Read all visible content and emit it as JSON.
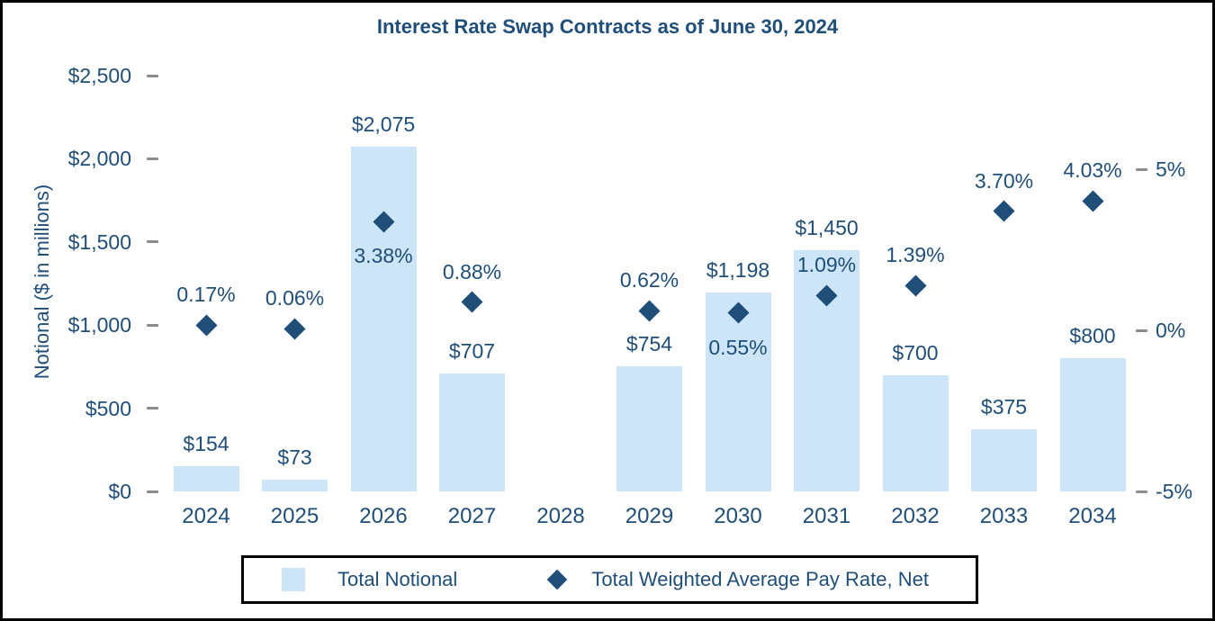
{
  "title": "Interest Rate Swap Contracts as of June 30, 2024",
  "chart_data": {
    "type": "bar",
    "subtype": "combo-bar-with-scatter-markers",
    "title": "Interest Rate Swap Contracts as of June 30, 2024",
    "categories": [
      "2024",
      "2025",
      "2026",
      "2027",
      "2028",
      "2029",
      "2030",
      "2031",
      "2032",
      "2033",
      "2034"
    ],
    "series": [
      {
        "name": "Total Notional",
        "type": "bar",
        "axis": "left",
        "values": [
          154,
          73,
          2075,
          707,
          null,
          754,
          1198,
          1450,
          700,
          375,
          800
        ],
        "data_labels": [
          "$154",
          "$73",
          "$2,075",
          "$707",
          null,
          "$754",
          "$1,198",
          "$1,450",
          "$700",
          "$375",
          "$800"
        ]
      },
      {
        "name": "Total Weighted Average Pay Rate, Net",
        "type": "scatter",
        "marker": "diamond",
        "axis": "right",
        "values": [
          0.17,
          0.06,
          3.38,
          0.88,
          null,
          0.62,
          0.55,
          1.09,
          1.39,
          3.7,
          4.03
        ],
        "data_labels": [
          "0.17%",
          "0.06%",
          "3.38%",
          "0.88%",
          null,
          "0.62%",
          "0.55%",
          "1.09%",
          "1.39%",
          "3.70%",
          "4.03%"
        ],
        "label_below_marker": [
          false,
          false,
          true,
          false,
          false,
          false,
          true,
          false,
          false,
          false,
          false
        ]
      }
    ],
    "left_axis": {
      "label": "Notional ($ in millions)",
      "tick_labels": [
        "$0",
        "$500",
        "$1,000",
        "$1,500",
        "$2,000",
        "$2,500"
      ],
      "tick_values": [
        0,
        500,
        1000,
        1500,
        2000,
        2500
      ],
      "min": 0,
      "max": 2500
    },
    "right_axis": {
      "tick_labels": [
        "-5%",
        "0%",
        "5%"
      ],
      "tick_values": [
        -5,
        0,
        5
      ]
    },
    "grid": false,
    "legend_position": "bottom",
    "legend": [
      {
        "label": "Total Notional",
        "swatch": "light-blue-square"
      },
      {
        "label": "Total Weighted Average Pay Rate, Net",
        "swatch": "dark-blue-diamond"
      }
    ]
  },
  "colors": {
    "accent_text": "#1F4E79",
    "bar_fill": "#CCE5F8",
    "marker_fill": "#1F4E79",
    "tick_dash": "#8C8C8C",
    "frame": "#000000",
    "bg": "#FFFFFF"
  }
}
